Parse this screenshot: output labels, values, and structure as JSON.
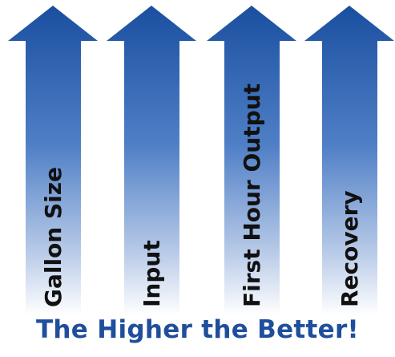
{
  "arrows": [
    {
      "label": "Gallon Size"
    },
    {
      "label": "Input"
    },
    {
      "label": "First Hour Output"
    },
    {
      "label": "Recovery"
    }
  ],
  "tagline": "The Higher the Better!",
  "colors": {
    "arrow_top": "#1a4fa0",
    "arrow_mid": "#4f7fc6",
    "arrow_bottom": "#ffffff",
    "tagline": "#1f4e9c",
    "label": "#111111"
  }
}
